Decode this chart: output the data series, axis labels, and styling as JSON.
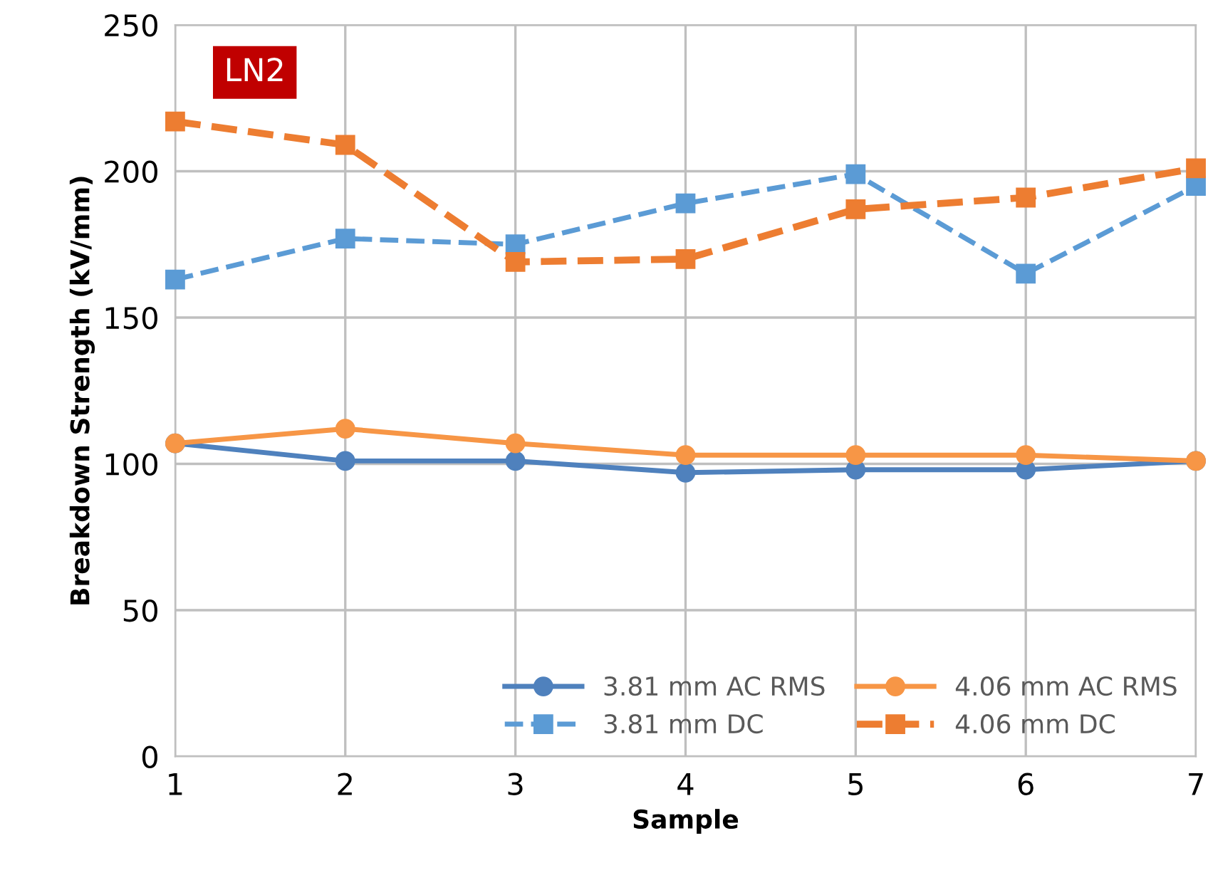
{
  "chart_data": {
    "type": "line",
    "xlabel": "Sample",
    "ylabel": "Breakdown Strength (kV/mm)",
    "x": [
      1,
      2,
      3,
      4,
      5,
      6,
      7
    ],
    "xlim": [
      1,
      7
    ],
    "xticks": [
      1,
      2,
      3,
      4,
      5,
      6,
      7
    ],
    "ylim": [
      0,
      250
    ],
    "yticks": [
      0,
      50,
      100,
      150,
      200,
      250
    ],
    "grid": true,
    "legend": "bottom right",
    "annotations": [
      "LN2"
    ],
    "series": [
      {
        "name": "3.81 mm AC RMS",
        "color": "#4f81bd",
        "marker": "circle",
        "line_style": "solid",
        "values": [
          107,
          101,
          101,
          97,
          98,
          98,
          101
        ]
      },
      {
        "name": "4.06 mm AC RMS",
        "color": "#f79646",
        "marker": "circle",
        "line_style": "solid",
        "values": [
          107,
          112,
          107,
          103,
          103,
          103,
          101
        ]
      },
      {
        "name": "3.81 mm DC",
        "color": "#5b9bd5",
        "marker": "square",
        "line_style": "dashed",
        "values": [
          163,
          177,
          175,
          189,
          199,
          165,
          195
        ]
      },
      {
        "name": "4.06 mm DC",
        "color": "#ed7d31",
        "marker": "square",
        "line_style": "dashed",
        "values": [
          217,
          209,
          169,
          170,
          187,
          191,
          201
        ]
      }
    ]
  }
}
